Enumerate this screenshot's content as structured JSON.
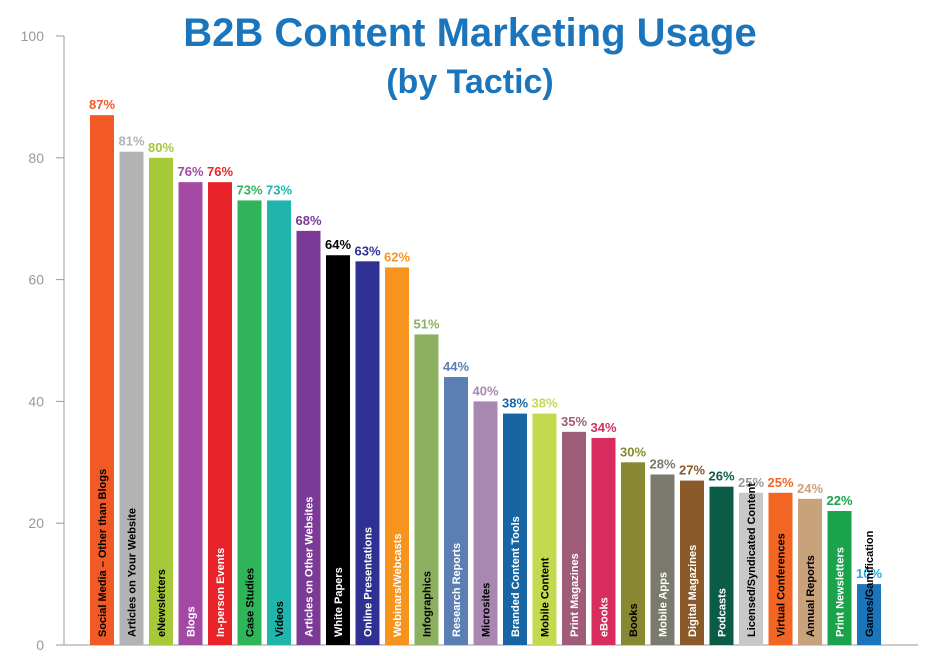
{
  "chart_data": {
    "type": "bar",
    "title": "B2B Content Marketing Usage",
    "subtitle": "(by Tactic)",
    "xlabel": "",
    "ylabel": "",
    "ylim": [
      0,
      100
    ],
    "yticks": [
      "0",
      "20",
      "40",
      "60",
      "80",
      "100"
    ],
    "grid": false,
    "categories": [
      "Social Media – Other than Blogs",
      "Articles on Your Website",
      "eNewsletters",
      "Blogs",
      "In-person Events",
      "Case Studies",
      "Videos",
      "Articles on Other Websites",
      "White Papers",
      "Online Presentations",
      "Webinars/Webcasts",
      "Infographics",
      "Research Reports",
      "Microsites",
      "Branded Content Tools",
      "Mobile Content",
      "Print Magazines",
      "eBooks",
      "Books",
      "Mobile Apps",
      "Digital Magazines",
      "Podcasts",
      "Licensed/Syndicated Content",
      "Virtual Conferences",
      "Annual Reports",
      "Print Newsletters",
      "Games/Gamification"
    ],
    "values": [
      87,
      81,
      80,
      76,
      76,
      73,
      73,
      68,
      64,
      63,
      62,
      51,
      44,
      40,
      38,
      38,
      35,
      34,
      30,
      28,
      27,
      26,
      25,
      25,
      24,
      22,
      10
    ],
    "value_labels": [
      "87%",
      "81%",
      "80%",
      "76%",
      "76%",
      "73%",
      "73%",
      "68%",
      "64%",
      "63%",
      "62%",
      "51%",
      "44%",
      "40%",
      "38%",
      "38%",
      "35%",
      "34%",
      "30%",
      "28%",
      "27%",
      "26%",
      "25%",
      "25%",
      "24%",
      "22%",
      "10%"
    ],
    "colors": [
      "#f15a24",
      "#b3b3b3",
      "#a6c93a",
      "#a349a4",
      "#e8232a",
      "#2fb45a",
      "#1fb5ac",
      "#7b3a96",
      "#000000",
      "#2e3192",
      "#f7941d",
      "#8cb060",
      "#5b7fb3",
      "#a888b0",
      "#1766a3",
      "#c5d94f",
      "#9e5c78",
      "#d82b5e",
      "#888833",
      "#7a7a6e",
      "#8b5a2b",
      "#0a5c47",
      "#c8c8c8",
      "#f26522",
      "#c8a27a",
      "#1aa34a",
      "#1a75bc"
    ],
    "label_colors": [
      "#f15a24",
      "#b3b3b3",
      "#a6c93a",
      "#a349a4",
      "#e8232a",
      "#2fb45a",
      "#1fb5ac",
      "#7b3a96",
      "#000000",
      "#2e3192",
      "#f7941d",
      "#8cb060",
      "#5b7fb3",
      "#a888b0",
      "#1766a3",
      "#c5d94f",
      "#9e5c78",
      "#d82b5e",
      "#888833",
      "#7a7a6e",
      "#8b5a2b",
      "#0a5c47",
      "#999999",
      "#f26522",
      "#c8a27a",
      "#1aa34a",
      "#29aae1"
    ],
    "category_text_colors": [
      "#000000",
      "#000000",
      "#000000",
      "#ffffff",
      "#ffffff",
      "#000000",
      "#000000",
      "#ffffff",
      "#ffffff",
      "#ffffff",
      "#ffffff",
      "#000000",
      "#ffffff",
      "#000000",
      "#ffffff",
      "#000000",
      "#ffffff",
      "#ffffff",
      "#000000",
      "#ffffff",
      "#ffffff",
      "#ffffff",
      "#000000",
      "#000000",
      "#000000",
      "#ffffff",
      "#000000"
    ]
  }
}
